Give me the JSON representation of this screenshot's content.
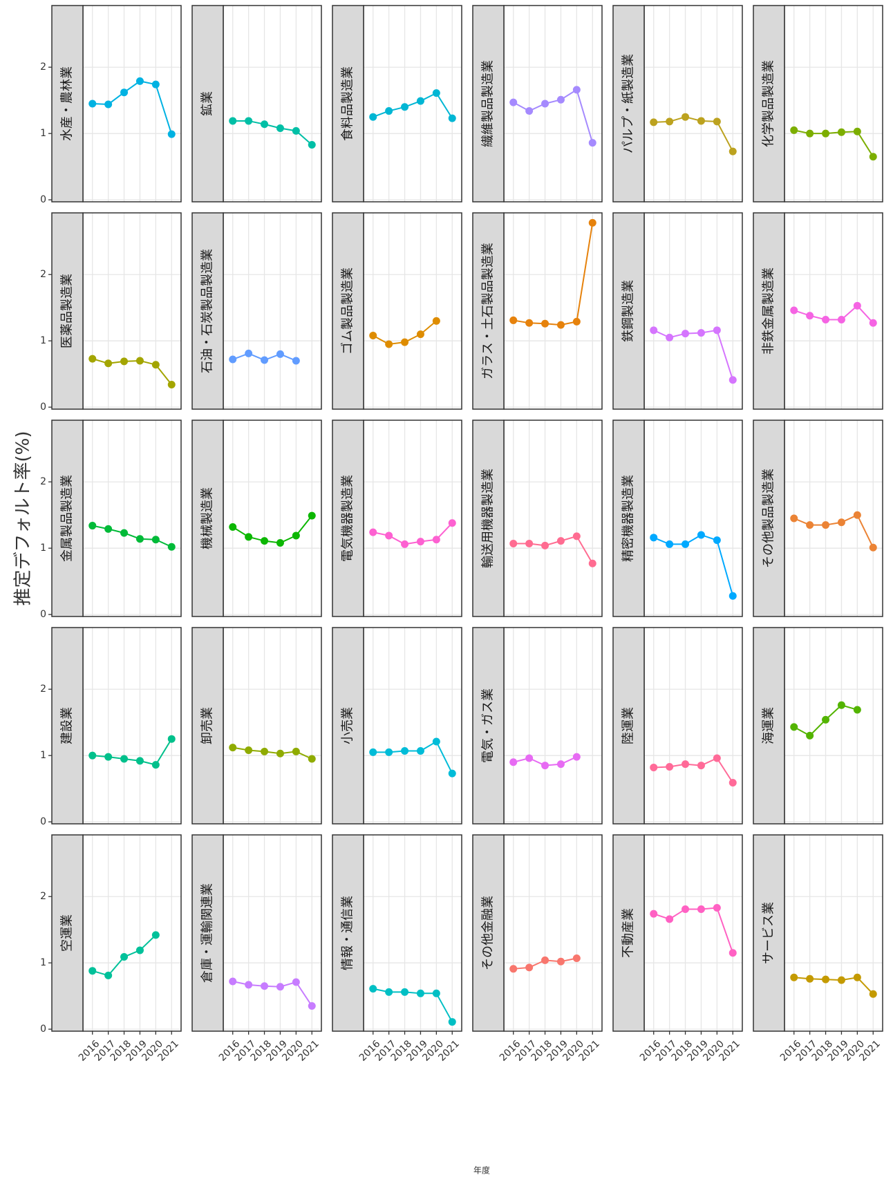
{
  "chart_data": {
    "type": "line",
    "y_label": "推定デフォルト率(%)",
    "x_label": "年度",
    "x": [
      2016,
      2017,
      2018,
      2019,
      2020,
      2021
    ],
    "xlim": [
      2015.4,
      2021.6
    ],
    "xticks": [
      2016,
      2017,
      2018,
      2019,
      2020,
      2021
    ],
    "ylim": [
      -0.03,
      2.93
    ],
    "yticks": [
      0,
      1,
      2
    ],
    "grid": true,
    "series": [
      {
        "name": "水産・農林業",
        "color": "#00b2e2",
        "values": [
          1.45,
          1.44,
          1.62,
          1.79,
          1.74,
          0.99
        ]
      },
      {
        "name": "鉱業",
        "color": "#00bfa6",
        "values": [
          1.19,
          1.19,
          1.14,
          1.08,
          1.04,
          0.83
        ]
      },
      {
        "name": "食料品製造業",
        "color": "#00b6d4",
        "values": [
          1.25,
          1.34,
          1.4,
          1.49,
          1.61,
          1.23
        ]
      },
      {
        "name": "繊維製品製造業",
        "color": "#a58afe",
        "values": [
          1.47,
          1.34,
          1.45,
          1.51,
          1.66,
          0.86
        ]
      },
      {
        "name": "パルプ・紙製造業",
        "color": "#bca21f",
        "values": [
          1.17,
          1.18,
          1.25,
          1.19,
          1.18,
          0.73
        ]
      },
      {
        "name": "化学製品製造業",
        "color": "#7cae00",
        "values": [
          1.05,
          1.0,
          1.0,
          1.02,
          1.03,
          0.65
        ]
      },
      {
        "name": "医薬品製造業",
        "color": "#a3a500",
        "values": [
          0.73,
          0.66,
          0.69,
          0.7,
          0.64,
          0.34
        ]
      },
      {
        "name": "石油・石炭製品製造業",
        "color": "#619cff",
        "values": [
          0.72,
          0.81,
          0.71,
          0.8,
          0.7,
          null
        ]
      },
      {
        "name": "ゴム製品製造業",
        "color": "#de8c00",
        "values": [
          1.08,
          0.95,
          0.98,
          1.1,
          1.3,
          null
        ]
      },
      {
        "name": "ガラス・土石製品製造業",
        "color": "#e6820c",
        "values": [
          1.31,
          1.27,
          1.26,
          1.24,
          1.29,
          2.78
        ]
      },
      {
        "name": "鉄鋼製造業",
        "color": "#d575fe",
        "values": [
          1.16,
          1.05,
          1.11,
          1.12,
          1.16,
          0.41
        ]
      },
      {
        "name": "非鉄金属製造業",
        "color": "#f564e3",
        "values": [
          1.46,
          1.38,
          1.32,
          1.32,
          1.53,
          1.27
        ]
      },
      {
        "name": "金属製品製造業",
        "color": "#00ba38",
        "values": [
          1.34,
          1.29,
          1.23,
          1.14,
          1.13,
          1.02
        ]
      },
      {
        "name": "機械製造業",
        "color": "#0cb702",
        "values": [
          1.32,
          1.17,
          1.11,
          1.08,
          1.19,
          1.49
        ]
      },
      {
        "name": "電気機器製造業",
        "color": "#fd61d1",
        "values": [
          1.24,
          1.19,
          1.06,
          1.1,
          1.13,
          1.38
        ]
      },
      {
        "name": "輸送用機器製造業",
        "color": "#ff6c91",
        "values": [
          1.07,
          1.07,
          1.04,
          1.11,
          1.18,
          0.77
        ]
      },
      {
        "name": "精密機器製造業",
        "color": "#00a9ff",
        "values": [
          1.16,
          1.06,
          1.06,
          1.2,
          1.12,
          0.28
        ]
      },
      {
        "name": "その他製品製造業",
        "color": "#eb8335",
        "values": [
          1.45,
          1.35,
          1.35,
          1.39,
          1.5,
          1.01
        ]
      },
      {
        "name": "建設業",
        "color": "#00c08b",
        "values": [
          1.0,
          0.98,
          0.95,
          0.92,
          0.86,
          1.25
        ]
      },
      {
        "name": "卸売業",
        "color": "#8fab00",
        "values": [
          1.12,
          1.08,
          1.06,
          1.03,
          1.06,
          0.95
        ]
      },
      {
        "name": "小売業",
        "color": "#00bcd8",
        "values": [
          1.05,
          1.05,
          1.07,
          1.07,
          1.21,
          0.73
        ]
      },
      {
        "name": "電気・ガス業",
        "color": "#e76bf3",
        "values": [
          0.9,
          0.96,
          0.85,
          0.87,
          0.98,
          null
        ]
      },
      {
        "name": "陸運業",
        "color": "#ff6a98",
        "values": [
          0.82,
          0.83,
          0.87,
          0.85,
          0.96,
          0.59
        ]
      },
      {
        "name": "海運業",
        "color": "#53b400",
        "values": [
          1.43,
          1.3,
          1.54,
          1.76,
          1.69,
          null
        ]
      },
      {
        "name": "空運業",
        "color": "#00c19a",
        "values": [
          0.88,
          0.81,
          1.09,
          1.19,
          1.42,
          null
        ]
      },
      {
        "name": "倉庫・運輸関連業",
        "color": "#c77cff",
        "values": [
          0.72,
          0.67,
          0.65,
          0.64,
          0.71,
          0.35
        ]
      },
      {
        "name": "情報・通信業",
        "color": "#00bfc4",
        "values": [
          0.61,
          0.56,
          0.56,
          0.54,
          0.54,
          0.11
        ]
      },
      {
        "name": "その他金融業",
        "color": "#f8766d",
        "values": [
          0.91,
          0.93,
          1.04,
          1.02,
          1.07,
          null
        ]
      },
      {
        "name": "不動産業",
        "color": "#ff61c3",
        "values": [
          1.74,
          1.66,
          1.81,
          1.81,
          1.83,
          1.15
        ]
      },
      {
        "name": "サービス業",
        "color": "#c49a00",
        "values": [
          0.78,
          0.76,
          0.75,
          0.74,
          0.78,
          0.53
        ]
      }
    ]
  }
}
